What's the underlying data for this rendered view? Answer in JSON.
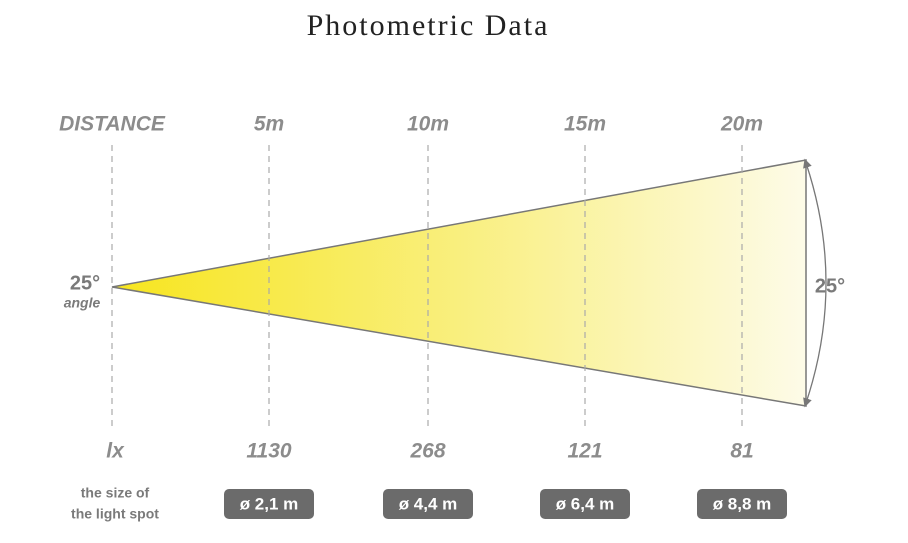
{
  "title": "Photometric Data",
  "distance": {
    "label": "DISTANCE",
    "values": [
      "5m",
      "10m",
      "15m",
      "20m"
    ]
  },
  "beam_angle": {
    "value": "25°",
    "label": "angle"
  },
  "cone_angle": "25°",
  "illuminance": {
    "label": "lx",
    "values": [
      "1130",
      "268",
      "121",
      "81"
    ]
  },
  "spot_size": {
    "label_lines": [
      "the size of",
      "the light spot"
    ],
    "values": [
      "ø 2,1 m",
      "ø 4,4 m",
      "ø 6,4 m",
      "ø 8,8 m"
    ]
  }
}
